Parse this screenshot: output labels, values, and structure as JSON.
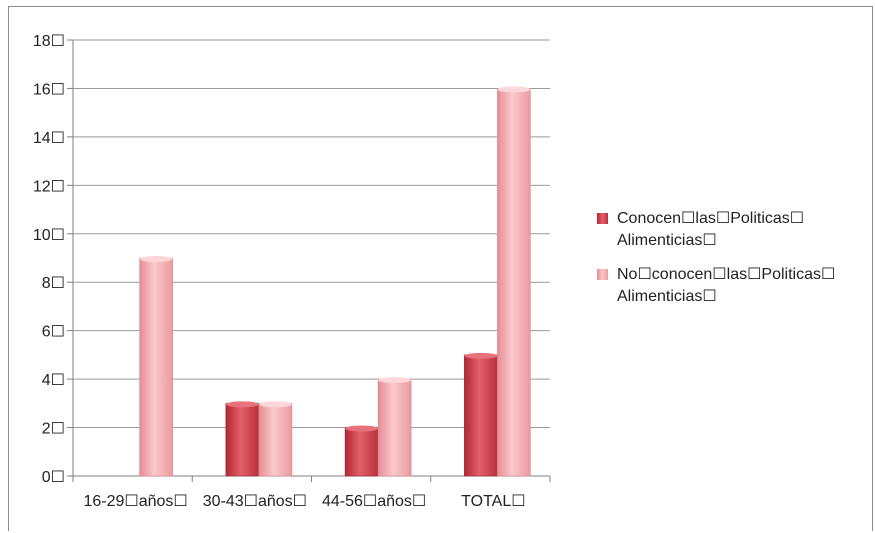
{
  "chart_data": {
    "type": "bar",
    "categories": [
      "16-29☐años☐",
      "30-43☐años☐",
      "44-56☐años☐",
      "TOTAL☐"
    ],
    "series": [
      {
        "name": "Conocen☐las☐Politicas☐ Alimenticias☐",
        "values": [
          0,
          3,
          2,
          5
        ],
        "color": "#d1444f"
      },
      {
        "name": "No☐conocen☐las☐Politicas☐ Alimenticias☐",
        "values": [
          9,
          3,
          4,
          16
        ],
        "color": "#f0a3a8"
      }
    ],
    "ylim": [
      0,
      18
    ],
    "yticks": [
      "0☐",
      "2☐",
      "4☐",
      "6☐",
      "8☐",
      "10☐",
      "12☐",
      "14☐",
      "16☐",
      "18☐"
    ],
    "grid": true,
    "legend": "right"
  },
  "legend": {
    "items": [
      {
        "line1": "Conocen☐las☐Politicas☐",
        "line2": "Alimenticias☐"
      },
      {
        "line1": "No☐conocen☐las☐Politicas☐",
        "line2": "Alimenticias☐"
      }
    ]
  }
}
